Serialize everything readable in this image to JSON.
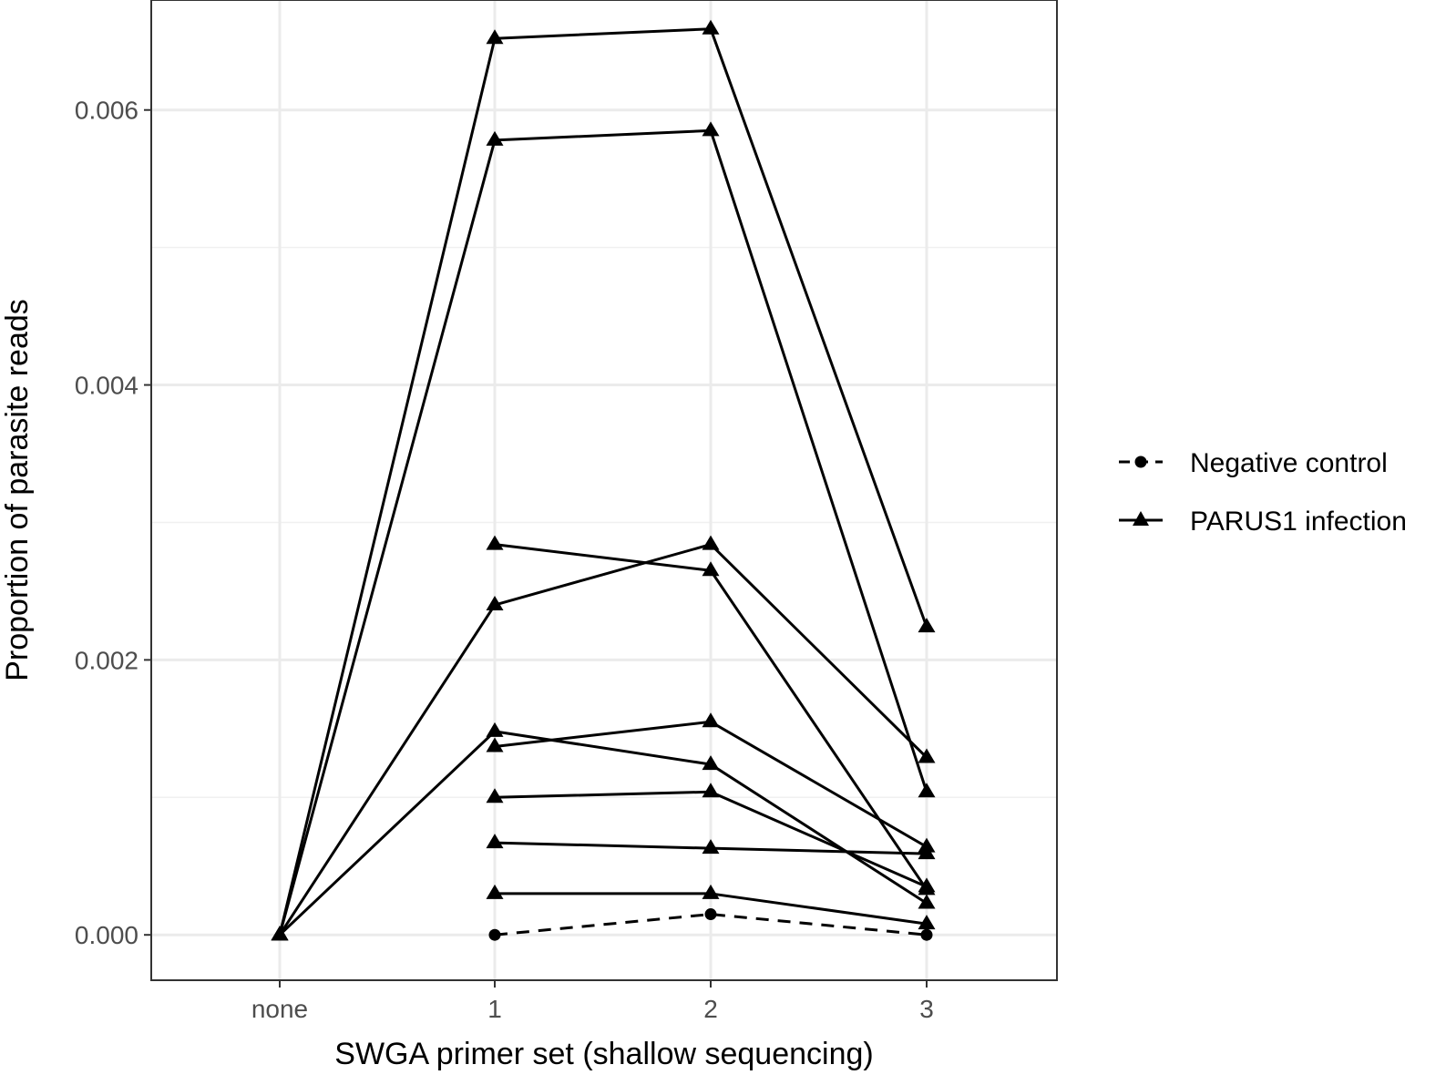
{
  "chart_data": {
    "type": "line",
    "xlabel": "SWGA primer set (shallow sequencing)",
    "ylabel": "Proportion of parasite reads",
    "categories": [
      "none",
      "1",
      "2",
      "3"
    ],
    "yticks": [
      "0.000",
      "0.002",
      "0.004",
      "0.006"
    ],
    "ytick_values": [
      0,
      0.002,
      0.004,
      0.006
    ],
    "ylim": [
      -0.00033,
      0.0068
    ],
    "grid": true,
    "legend_position": "right",
    "legend": [
      {
        "label": "Negative control",
        "marker": "circle",
        "linestyle": "dashed"
      },
      {
        "label": "PARUS1 infection",
        "marker": "triangle",
        "linestyle": "solid"
      }
    ],
    "series": [
      {
        "group": "Negative control",
        "x": [
          "1",
          "2",
          "3"
        ],
        "values": [
          0.0,
          0.00015,
          0.0
        ]
      },
      {
        "group": "PARUS1 infection",
        "x": [
          "none",
          "1",
          "2",
          "3"
        ],
        "values": [
          0.0,
          0.00652,
          0.00659,
          0.00224
        ]
      },
      {
        "group": "PARUS1 infection",
        "x": [
          "none",
          "1",
          "2",
          "3"
        ],
        "values": [
          0.0,
          0.00578,
          0.00585,
          0.00104
        ]
      },
      {
        "group": "PARUS1 infection",
        "x": [
          "none",
          "1",
          "2",
          "3"
        ],
        "values": [
          0.0,
          0.0024,
          0.00284,
          0.00129
        ]
      },
      {
        "group": "PARUS1 infection",
        "x": [
          "1",
          "2",
          "3"
        ],
        "values": [
          0.00284,
          0.00265,
          0.00033
        ]
      },
      {
        "group": "PARUS1 infection",
        "x": [
          "none",
          "1",
          "2",
          "3"
        ],
        "values": [
          0.0,
          0.00148,
          0.00124,
          0.00023
        ]
      },
      {
        "group": "PARUS1 infection",
        "x": [
          "1",
          "2",
          "3"
        ],
        "values": [
          0.00137,
          0.00155,
          0.00064
        ]
      },
      {
        "group": "PARUS1 infection",
        "x": [
          "1",
          "2",
          "3"
        ],
        "values": [
          0.001,
          0.00104,
          0.00035
        ]
      },
      {
        "group": "PARUS1 infection",
        "x": [
          "1",
          "2",
          "3"
        ],
        "values": [
          0.00067,
          0.00063,
          0.00059
        ]
      },
      {
        "group": "PARUS1 infection",
        "x": [
          "1",
          "2",
          "3"
        ],
        "values": [
          0.0003,
          0.0003,
          8e-05
        ]
      }
    ]
  }
}
